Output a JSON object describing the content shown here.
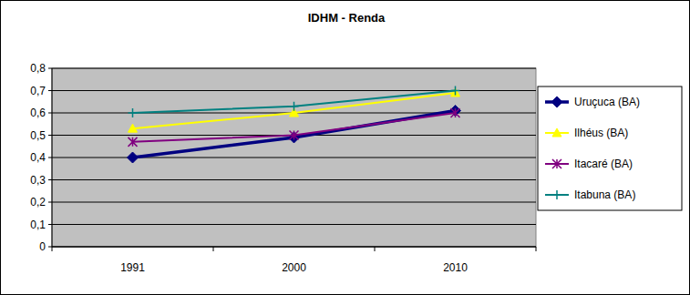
{
  "chart_data": {
    "type": "line",
    "title": "IDHM - Renda",
    "categories": [
      "1991",
      "2000",
      "2010"
    ],
    "series": [
      {
        "name": "Uruçuca (BA)",
        "color": "#000080",
        "marker": "diamond",
        "values": [
          0.4,
          0.49,
          0.61
        ]
      },
      {
        "name": "Ilhéus (BA)",
        "color": "#ffff00",
        "marker": "triangle",
        "values": [
          0.53,
          0.6,
          0.69
        ]
      },
      {
        "name": "Itacaré (BA)",
        "color": "#800080",
        "marker": "star",
        "values": [
          0.47,
          0.5,
          0.6
        ]
      },
      {
        "name": "Itabuna (BA)",
        "color": "#008080",
        "marker": "plus",
        "values": [
          0.6,
          0.63,
          0.7
        ]
      }
    ],
    "ylim": [
      0,
      0.8
    ],
    "yticks": [
      0,
      {
        "value": 0.1,
        "label": "0,1"
      },
      {
        "value": 0.2,
        "label": "0,2"
      },
      {
        "value": 0.3,
        "label": "0,3"
      },
      {
        "value": 0.4,
        "label": "0,4"
      },
      {
        "value": 0.5,
        "label": "0,5"
      },
      {
        "value": 0.6,
        "label": "0,6"
      },
      {
        "value": 0.7,
        "label": "0,7"
      },
      {
        "value": 0.8,
        "label": "0,8"
      }
    ],
    "grid": true,
    "legend": "right"
  }
}
